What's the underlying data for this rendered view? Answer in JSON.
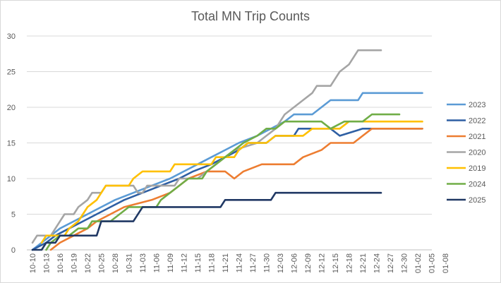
{
  "chart_data": {
    "type": "line",
    "title": "Total MN Trip Counts",
    "xlabel": "",
    "ylabel": "",
    "ylim": [
      0,
      30
    ],
    "yticks": [
      0,
      5,
      10,
      15,
      20,
      25,
      30
    ],
    "grid": true,
    "legend_position": "right",
    "x_tick_labels": [
      "10-10",
      "10-13",
      "10-16",
      "10-19",
      "10-22",
      "10-25",
      "10-28",
      "10-31",
      "11-03",
      "11-06",
      "11-09",
      "11-12",
      "11-15",
      "11-18",
      "11-21",
      "11-24",
      "11-27",
      "11-30",
      "12-03",
      "12-06",
      "12-09",
      "12-12",
      "12-15",
      "12-18",
      "12-21",
      "12-24",
      "12-27",
      "12-30",
      "01-02",
      "01-05",
      "01-08"
    ],
    "series": [
      {
        "name": "2023",
        "color": "#5b9bd5",
        "points": [
          [
            0,
            0
          ],
          [
            2,
            1
          ],
          [
            4,
            2
          ],
          [
            6,
            3
          ],
          [
            9,
            4
          ],
          [
            12,
            5
          ],
          [
            15,
            6
          ],
          [
            18,
            7
          ],
          [
            22,
            8
          ],
          [
            26,
            9
          ],
          [
            30,
            10
          ],
          [
            33,
            11
          ],
          [
            36,
            12
          ],
          [
            39,
            13
          ],
          [
            42,
            14
          ],
          [
            45,
            15
          ],
          [
            49,
            16
          ],
          [
            52,
            17
          ],
          [
            55,
            18
          ],
          [
            57,
            19
          ],
          [
            61,
            19
          ],
          [
            63,
            20
          ],
          [
            65,
            21
          ],
          [
            71,
            21
          ],
          [
            72,
            22
          ],
          [
            85,
            22
          ]
        ]
      },
      {
        "name": "2022",
        "color": "#2e5fa3",
        "points": [
          [
            0,
            0
          ],
          [
            3,
            1
          ],
          [
            5,
            2
          ],
          [
            8,
            3
          ],
          [
            11,
            4
          ],
          [
            14,
            5
          ],
          [
            17,
            6
          ],
          [
            20,
            7
          ],
          [
            24,
            8
          ],
          [
            28,
            9
          ],
          [
            32,
            10
          ],
          [
            35,
            11
          ],
          [
            39,
            12
          ],
          [
            42,
            13
          ],
          [
            45,
            14
          ],
          [
            47,
            15
          ],
          [
            51,
            15
          ],
          [
            53,
            16
          ],
          [
            57,
            16
          ],
          [
            58,
            17
          ],
          [
            65,
            17
          ],
          [
            67,
            16
          ],
          [
            72,
            17
          ],
          [
            85,
            17
          ]
        ]
      },
      {
        "name": "2021",
        "color": "#ed7d31",
        "points": [
          [
            4,
            0
          ],
          [
            6,
            1
          ],
          [
            9,
            2
          ],
          [
            12,
            3
          ],
          [
            14,
            4
          ],
          [
            17,
            5
          ],
          [
            20,
            6
          ],
          [
            26,
            7
          ],
          [
            30,
            8
          ],
          [
            32,
            9
          ],
          [
            34,
            10
          ],
          [
            38,
            11
          ],
          [
            42,
            11
          ],
          [
            44,
            10
          ],
          [
            46,
            11
          ],
          [
            50,
            12
          ],
          [
            57,
            12
          ],
          [
            59,
            13
          ],
          [
            63,
            14
          ],
          [
            65,
            15
          ],
          [
            70,
            15
          ],
          [
            72,
            16
          ],
          [
            74,
            17
          ],
          [
            85,
            17
          ]
        ]
      },
      {
        "name": "2020",
        "color": "#a5a5a5",
        "points": [
          [
            0,
            1
          ],
          [
            1,
            2
          ],
          [
            4,
            2
          ],
          [
            5,
            3
          ],
          [
            6,
            4
          ],
          [
            7,
            5
          ],
          [
            9,
            5
          ],
          [
            10,
            6
          ],
          [
            12,
            7
          ],
          [
            13,
            8
          ],
          [
            15,
            8
          ],
          [
            16,
            9
          ],
          [
            22,
            9
          ],
          [
            23,
            8
          ],
          [
            24,
            8
          ],
          [
            25,
            9
          ],
          [
            31,
            9
          ],
          [
            32,
            10
          ],
          [
            36,
            10
          ],
          [
            38,
            11
          ],
          [
            40,
            12
          ],
          [
            42,
            13
          ],
          [
            44,
            14
          ],
          [
            49,
            15
          ],
          [
            51,
            16
          ],
          [
            53,
            17
          ],
          [
            54,
            18
          ],
          [
            55,
            19
          ],
          [
            57,
            20
          ],
          [
            59,
            21
          ],
          [
            61,
            22
          ],
          [
            62,
            23
          ],
          [
            65,
            23
          ],
          [
            66,
            24
          ],
          [
            67,
            25
          ],
          [
            69,
            26
          ],
          [
            70,
            27
          ],
          [
            71,
            28
          ],
          [
            76,
            28
          ]
        ]
      },
      {
        "name": "2019",
        "color": "#ffc000",
        "points": [
          [
            2,
            1
          ],
          [
            3,
            2
          ],
          [
            7,
            2
          ],
          [
            8,
            3
          ],
          [
            10,
            4
          ],
          [
            11,
            5
          ],
          [
            12,
            6
          ],
          [
            14,
            7
          ],
          [
            15,
            8
          ],
          [
            16,
            9
          ],
          [
            21,
            9
          ],
          [
            22,
            10
          ],
          [
            24,
            11
          ],
          [
            30,
            11
          ],
          [
            31,
            12
          ],
          [
            39,
            12
          ],
          [
            40,
            13
          ],
          [
            44,
            13
          ],
          [
            45,
            14
          ],
          [
            47,
            15
          ],
          [
            51,
            15
          ],
          [
            53,
            16
          ],
          [
            59,
            16
          ],
          [
            61,
            17
          ],
          [
            67,
            17
          ],
          [
            69,
            18
          ],
          [
            85,
            18
          ]
        ]
      },
      {
        "name": "2024",
        "color": "#70ad47",
        "points": [
          [
            3,
            0
          ],
          [
            4,
            1
          ],
          [
            6,
            2
          ],
          [
            8,
            2
          ],
          [
            10,
            3
          ],
          [
            12,
            3
          ],
          [
            13,
            4
          ],
          [
            17,
            4
          ],
          [
            19,
            5
          ],
          [
            21,
            6
          ],
          [
            27,
            6
          ],
          [
            28,
            7
          ],
          [
            30,
            8
          ],
          [
            32,
            9
          ],
          [
            34,
            10
          ],
          [
            37,
            10
          ],
          [
            38,
            11
          ],
          [
            40,
            12
          ],
          [
            42,
            13
          ],
          [
            44,
            14
          ],
          [
            46,
            15
          ],
          [
            49,
            16
          ],
          [
            51,
            17
          ],
          [
            53,
            17
          ],
          [
            55,
            18
          ],
          [
            63,
            18
          ],
          [
            65,
            17
          ],
          [
            68,
            18
          ],
          [
            72,
            18
          ],
          [
            74,
            19
          ],
          [
            80,
            19
          ]
        ]
      },
      {
        "name": "2025",
        "color": "#203864",
        "points": [
          [
            0,
            0
          ],
          [
            2,
            0
          ],
          [
            3,
            1
          ],
          [
            5,
            1
          ],
          [
            6,
            2
          ],
          [
            14,
            2
          ],
          [
            15,
            4
          ],
          [
            22,
            4
          ],
          [
            24,
            6
          ],
          [
            41,
            6
          ],
          [
            42,
            7
          ],
          [
            52,
            7
          ],
          [
            53,
            8
          ],
          [
            76,
            8
          ]
        ]
      }
    ]
  }
}
